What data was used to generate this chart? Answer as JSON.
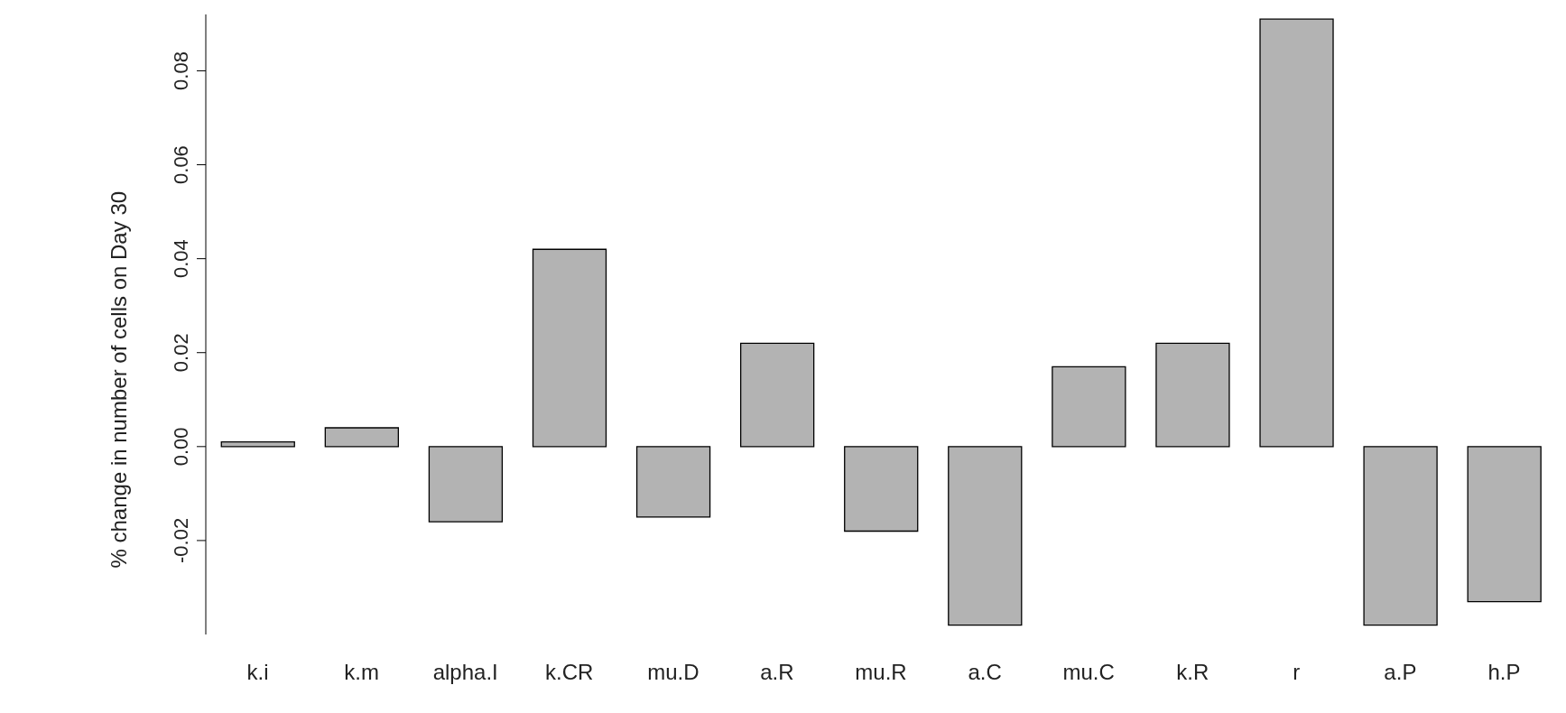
{
  "chart_data": {
    "type": "bar",
    "ylabel": "% change in number of cells on Day 30",
    "categories": [
      "k.i",
      "k.m",
      "alpha.I",
      "k.CR",
      "mu.D",
      "a.R",
      "mu.R",
      "a.C",
      "mu.C",
      "k.R",
      "r",
      "a.P",
      "h.P"
    ],
    "values": [
      0.001,
      0.004,
      -0.016,
      0.042,
      -0.015,
      0.022,
      -0.018,
      -0.038,
      0.017,
      0.022,
      0.091,
      -0.038,
      -0.033
    ],
    "color": "#b3b3b3",
    "ylim": [
      -0.04,
      0.092
    ],
    "yticks": [
      {
        "value": -0.02,
        "label": "-0.02"
      },
      {
        "value": 0,
        "label": "0.00"
      },
      {
        "value": 0.02,
        "label": "0.02"
      },
      {
        "value": 0.04,
        "label": "0.04"
      },
      {
        "value": 0.06,
        "label": "0.06"
      },
      {
        "value": 0.08,
        "label": "0.08"
      }
    ],
    "grid": false,
    "legend": false
  }
}
